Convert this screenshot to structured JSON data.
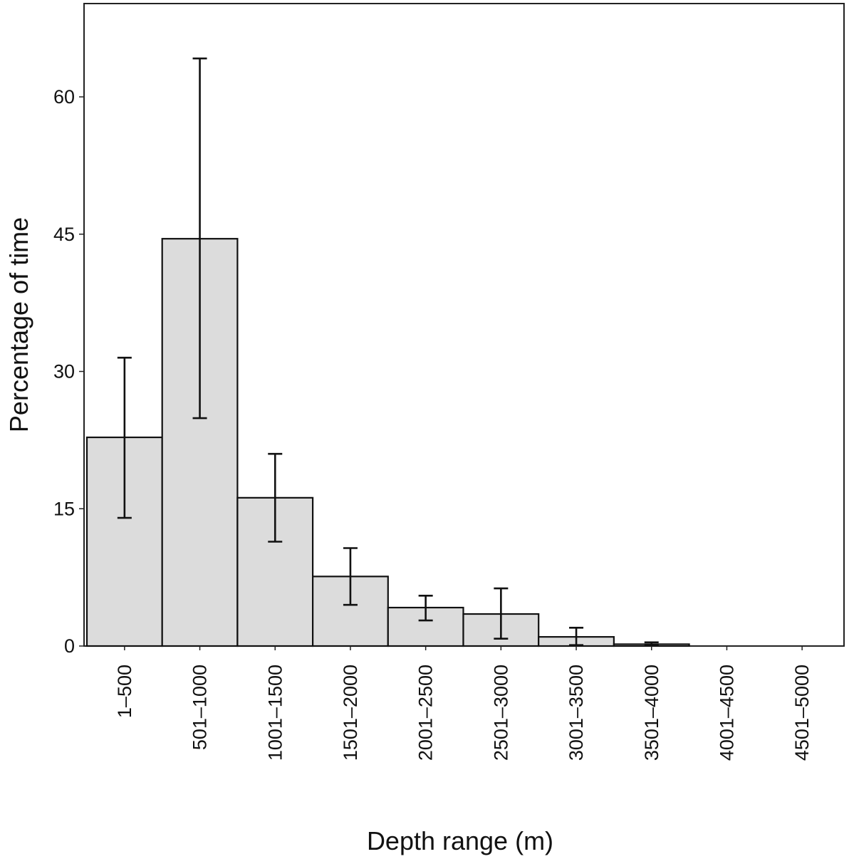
{
  "chart_data": {
    "type": "bar",
    "title": "",
    "xlabel": "Depth range (m)",
    "ylabel": "Percentage of time",
    "categories": [
      "1–500",
      "501–1000",
      "1001–1500",
      "1501–2000",
      "2001–2500",
      "2501–3000",
      "3001–3500",
      "3501–4000",
      "4001–4500",
      "4501–5000"
    ],
    "values": [
      22.8,
      44.5,
      16.2,
      7.6,
      4.2,
      3.5,
      1.0,
      0.2,
      0,
      0
    ],
    "error_low": [
      14.0,
      24.9,
      11.4,
      4.5,
      2.8,
      0.8,
      0.1,
      0.05,
      0,
      0
    ],
    "error_high": [
      31.5,
      64.2,
      21.0,
      10.7,
      5.5,
      6.3,
      2.0,
      0.4,
      0,
      0
    ],
    "yticks": [
      "0",
      "15",
      "30",
      "45",
      "60"
    ],
    "ylim": [
      0,
      70
    ],
    "bar_color": "#dcdcdc",
    "edge_color": "#111111",
    "grid": false,
    "legend": "none"
  }
}
